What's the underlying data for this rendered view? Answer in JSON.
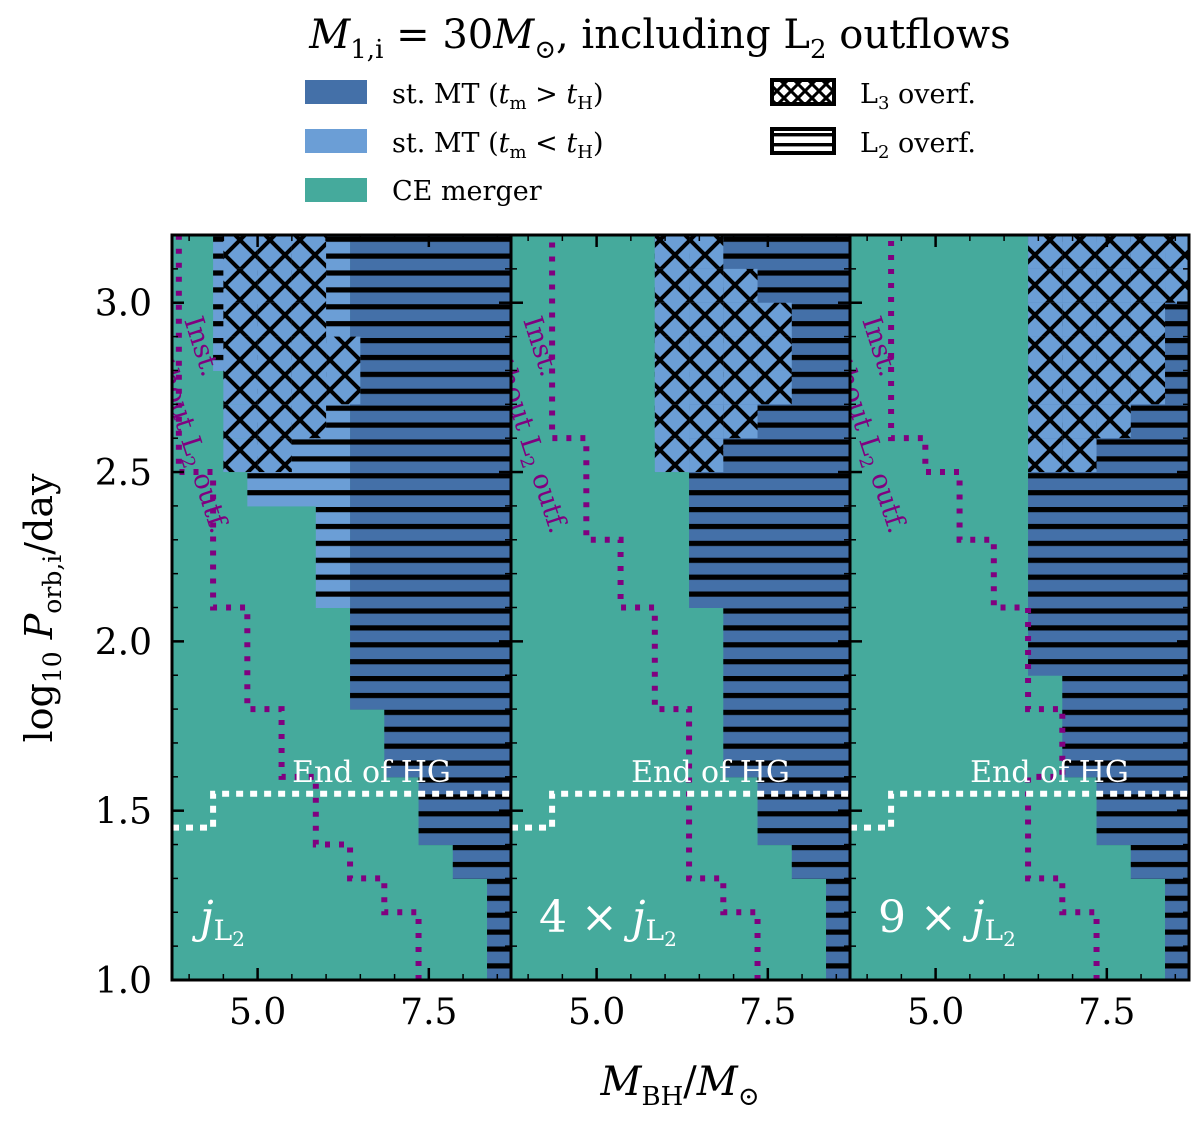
{
  "chart_data": {
    "type": "heatmap",
    "title_parts": {
      "base": "M",
      "base_sub": "1,i",
      "eq": " = 30",
      "unit": "M",
      "unit_sub": "⊙",
      "rest": ", including L",
      "l2_sub": "2",
      "tail": " outflows"
    },
    "xlabel_parts": {
      "base": "M",
      "base_sub": "BH",
      "slash": "/",
      "unit": "M",
      "unit_sub": "⊙"
    },
    "ylabel_parts": {
      "prefix": "log",
      "prefix_sub": "10",
      "base": " P",
      "base_sub": "orb,i",
      "tail": "/day"
    },
    "xlim": [
      3.75,
      8.7
    ],
    "ylim": [
      1.0,
      3.2
    ],
    "xticks": [
      5.0,
      7.5
    ],
    "xtick_labels": [
      "5.0",
      "7.5"
    ],
    "yticks": [
      1.0,
      1.5,
      2.0,
      2.5,
      3.0
    ],
    "ytick_labels": [
      "1.0",
      "1.5",
      "2.0",
      "2.5",
      "3.0"
    ],
    "x_step": 0.5,
    "y_step": 0.1,
    "colors": {
      "stable_long": "#4470a8",
      "stable_short": "#6b9ed6",
      "ce": "#45aa9c",
      "contour": "#800080",
      "hg_line": "#ffffff"
    },
    "legend": {
      "stable_long": {
        "pre": "st. MT (",
        "v1": "t",
        "v1_sub": "m",
        "op": " > ",
        "v2": "t",
        "v2_sub": "H",
        "post": ")"
      },
      "stable_short": {
        "pre": "st. MT (",
        "v1": "t",
        "v1_sub": "m",
        "op": " < ",
        "v2": "t",
        "v2_sub": "H",
        "post": ")"
      },
      "ce": {
        "label": "CE merger"
      },
      "l3": {
        "pre": "L",
        "sub": "3",
        "post": " overf."
      },
      "l2": {
        "pre": "L",
        "sub": "2",
        "post": " overf."
      }
    },
    "annotations": {
      "hg": "End of HG",
      "inst": {
        "line1": "Inst.",
        "line2_pre": "without L",
        "line2_sub": "2",
        "line2_post": " outf."
      }
    },
    "panels": [
      {
        "factor_label": "",
        "j_base": "j",
        "j_sub": "L",
        "j_subsub": "2",
        "stable_below": 4.5,
        "map_dx": 0.0,
        "stable_bounds": [
          [
            8.35,
            8.7
          ],
          [
            8.35,
            8.7
          ],
          [
            8.35,
            8.7
          ],
          [
            7.85,
            8.7
          ],
          [
            7.35,
            8.7
          ],
          [
            7.35,
            8.7
          ],
          [
            6.85,
            8.7
          ],
          [
            6.85,
            8.7
          ],
          [
            6.35,
            8.7
          ],
          [
            6.35,
            8.7
          ],
          [
            6.35,
            8.7
          ],
          [
            5.85,
            8.7
          ],
          [
            5.85,
            8.7
          ],
          [
            5.85,
            8.7
          ],
          [
            4.85,
            8.7
          ],
          [
            4.85,
            8.7
          ],
          [
            4.85,
            8.7
          ],
          [
            4.85,
            8.7
          ],
          [
            4.35,
            8.7
          ],
          [
            4.35,
            8.7
          ],
          [
            4.35,
            8.7
          ],
          [
            4.35,
            8.7
          ]
        ],
        "l3_cells": [
          [
            4.5,
            2.5
          ],
          [
            5.0,
            2.5
          ],
          [
            4.5,
            2.6
          ],
          [
            5.0,
            2.6
          ],
          [
            5.5,
            2.6
          ],
          [
            4.5,
            2.7
          ],
          [
            5.0,
            2.7
          ],
          [
            5.5,
            2.7
          ],
          [
            6.0,
            2.7
          ],
          [
            4.5,
            2.8
          ],
          [
            5.0,
            2.8
          ],
          [
            5.5,
            2.8
          ],
          [
            6.0,
            2.8
          ],
          [
            4.5,
            2.9
          ],
          [
            5.0,
            2.9
          ],
          [
            5.5,
            2.9
          ],
          [
            4.5,
            3.0
          ],
          [
            5.0,
            3.0
          ],
          [
            5.5,
            3.0
          ],
          [
            4.5,
            3.1
          ],
          [
            5.0,
            3.1
          ],
          [
            5.5,
            3.1
          ]
        ],
        "inst_bounds": [
          [
            7.35,
            8.7
          ],
          [
            7.35,
            8.7
          ],
          [
            6.85,
            8.7
          ],
          [
            6.35,
            8.7
          ],
          [
            5.85,
            8.7
          ],
          [
            5.85,
            8.7
          ],
          [
            5.35,
            8.7
          ],
          [
            5.35,
            8.7
          ],
          [
            4.85,
            8.7
          ],
          [
            4.85,
            8.7
          ],
          [
            4.85,
            8.7
          ],
          [
            4.35,
            8.7
          ],
          [
            4.35,
            8.7
          ],
          [
            4.35,
            8.7
          ],
          [
            4.35,
            8.7
          ],
          [
            3.85,
            8.7
          ],
          [
            3.85,
            8.7
          ],
          [
            3.85,
            8.7
          ],
          [
            3.85,
            8.7
          ],
          [
            3.85,
            8.7
          ],
          [
            3.85,
            8.7
          ],
          [
            3.85,
            8.7
          ]
        ],
        "hg_steps": [
          [
            3.75,
            1.45
          ],
          [
            4.35,
            1.45
          ],
          [
            4.35,
            1.55
          ],
          [
            8.7,
            1.55
          ]
        ]
      },
      {
        "factor_label": "4 × ",
        "j_base": "j",
        "j_sub": "L",
        "j_subsub": "2",
        "stable_below": 4.5,
        "map_dx": 0.0,
        "stable_bounds": [
          [
            8.35,
            8.7
          ],
          [
            8.35,
            8.7
          ],
          [
            8.35,
            8.7
          ],
          [
            7.85,
            8.7
          ],
          [
            7.35,
            8.7
          ],
          [
            7.35,
            8.7
          ],
          [
            6.85,
            8.7
          ],
          [
            6.85,
            8.7
          ],
          [
            6.85,
            8.7
          ],
          [
            6.85,
            8.7
          ],
          [
            6.85,
            8.7
          ],
          [
            6.35,
            8.7
          ],
          [
            6.35,
            8.7
          ],
          [
            6.35,
            8.7
          ],
          [
            6.35,
            8.7
          ],
          [
            6.35,
            8.7
          ],
          [
            5.85,
            8.7
          ],
          [
            5.85,
            8.7
          ],
          [
            5.85,
            8.7
          ],
          [
            5.85,
            8.7
          ],
          [
            5.85,
            8.7
          ],
          [
            5.85,
            8.7
          ]
        ],
        "l3_cells": [
          [
            5.85,
            2.5
          ],
          [
            6.35,
            2.5
          ],
          [
            5.85,
            2.6
          ],
          [
            6.35,
            2.6
          ],
          [
            6.85,
            2.6
          ],
          [
            5.85,
            2.7
          ],
          [
            6.35,
            2.7
          ],
          [
            6.85,
            2.7
          ],
          [
            7.35,
            2.7
          ],
          [
            5.85,
            2.8
          ],
          [
            6.35,
            2.8
          ],
          [
            6.85,
            2.8
          ],
          [
            7.35,
            2.8
          ],
          [
            5.85,
            2.9
          ],
          [
            6.35,
            2.9
          ],
          [
            6.85,
            2.9
          ],
          [
            7.35,
            2.9
          ],
          [
            5.85,
            3.0
          ],
          [
            6.35,
            3.0
          ],
          [
            6.85,
            3.0
          ],
          [
            5.85,
            3.1
          ],
          [
            6.35,
            3.1
          ]
        ],
        "inst_bounds": [
          [
            7.35,
            8.7
          ],
          [
            7.35,
            8.7
          ],
          [
            6.85,
            8.7
          ],
          [
            6.35,
            8.7
          ],
          [
            6.35,
            8.7
          ],
          [
            6.35,
            8.7
          ],
          [
            6.35,
            8.7
          ],
          [
            6.35,
            8.7
          ],
          [
            5.85,
            8.7
          ],
          [
            5.85,
            8.7
          ],
          [
            5.85,
            8.7
          ],
          [
            5.35,
            8.7
          ],
          [
            5.35,
            8.7
          ],
          [
            4.85,
            8.7
          ],
          [
            4.85,
            8.7
          ],
          [
            4.85,
            8.7
          ],
          [
            4.35,
            8.7
          ],
          [
            4.35,
            8.7
          ],
          [
            4.35,
            8.7
          ],
          [
            4.35,
            8.7
          ],
          [
            4.35,
            8.7
          ],
          [
            4.35,
            8.7
          ]
        ],
        "hg_steps": [
          [
            3.75,
            1.45
          ],
          [
            4.35,
            1.45
          ],
          [
            4.35,
            1.55
          ],
          [
            8.7,
            1.55
          ]
        ]
      },
      {
        "factor_label": "9 × ",
        "j_base": "j",
        "j_sub": "L",
        "j_subsub": "2",
        "stable_below": 4.5,
        "map_dx": 0.0,
        "stable_bounds": [
          [
            8.35,
            8.7
          ],
          [
            8.35,
            8.7
          ],
          [
            8.35,
            8.7
          ],
          [
            7.85,
            8.7
          ],
          [
            7.35,
            8.7
          ],
          [
            7.35,
            8.7
          ],
          [
            6.85,
            8.7
          ],
          [
            6.85,
            8.7
          ],
          [
            6.85,
            8.7
          ],
          [
            6.35,
            8.7
          ],
          [
            6.35,
            8.7
          ],
          [
            6.35,
            8.7
          ],
          [
            6.35,
            8.7
          ],
          [
            6.35,
            8.7
          ],
          [
            6.35,
            8.7
          ],
          [
            6.35,
            8.7
          ],
          [
            6.35,
            8.7
          ],
          [
            6.35,
            8.7
          ],
          [
            6.35,
            8.7
          ],
          [
            6.35,
            8.7
          ],
          [
            6.35,
            8.7
          ],
          [
            6.35,
            8.7
          ]
        ],
        "l3_cells": [
          [
            6.35,
            2.5
          ],
          [
            6.85,
            2.5
          ],
          [
            6.35,
            2.6
          ],
          [
            6.85,
            2.6
          ],
          [
            7.35,
            2.6
          ],
          [
            6.35,
            2.7
          ],
          [
            6.85,
            2.7
          ],
          [
            7.35,
            2.7
          ],
          [
            7.85,
            2.7
          ],
          [
            6.35,
            2.8
          ],
          [
            6.85,
            2.8
          ],
          [
            7.35,
            2.8
          ],
          [
            7.85,
            2.8
          ],
          [
            6.35,
            2.9
          ],
          [
            6.85,
            2.9
          ],
          [
            7.35,
            2.9
          ],
          [
            7.85,
            2.9
          ],
          [
            6.35,
            3.0
          ],
          [
            6.85,
            3.0
          ],
          [
            7.35,
            3.0
          ],
          [
            7.85,
            3.0
          ],
          [
            8.35,
            3.0
          ],
          [
            6.35,
            3.1
          ],
          [
            6.85,
            3.1
          ],
          [
            7.35,
            3.1
          ],
          [
            7.85,
            3.1
          ],
          [
            8.35,
            3.1
          ]
        ],
        "inst_bounds": [
          [
            7.35,
            8.7
          ],
          [
            7.35,
            8.7
          ],
          [
            6.85,
            8.7
          ],
          [
            6.35,
            8.7
          ],
          [
            6.35,
            8.7
          ],
          [
            6.35,
            8.7
          ],
          [
            6.85,
            8.7
          ],
          [
            6.85,
            8.7
          ],
          [
            6.35,
            8.7
          ],
          [
            6.35,
            8.7
          ],
          [
            6.35,
            8.7
          ],
          [
            5.85,
            8.7
          ],
          [
            5.85,
            8.7
          ],
          [
            5.35,
            8.7
          ],
          [
            5.35,
            8.7
          ],
          [
            4.85,
            8.7
          ],
          [
            4.35,
            8.7
          ],
          [
            4.35,
            8.7
          ],
          [
            4.35,
            8.7
          ],
          [
            4.35,
            8.7
          ],
          [
            4.35,
            8.7
          ],
          [
            4.35,
            8.7
          ]
        ],
        "hg_steps": [
          [
            3.75,
            1.45
          ],
          [
            4.35,
            1.45
          ],
          [
            4.35,
            1.55
          ],
          [
            8.7,
            1.55
          ]
        ]
      }
    ]
  }
}
